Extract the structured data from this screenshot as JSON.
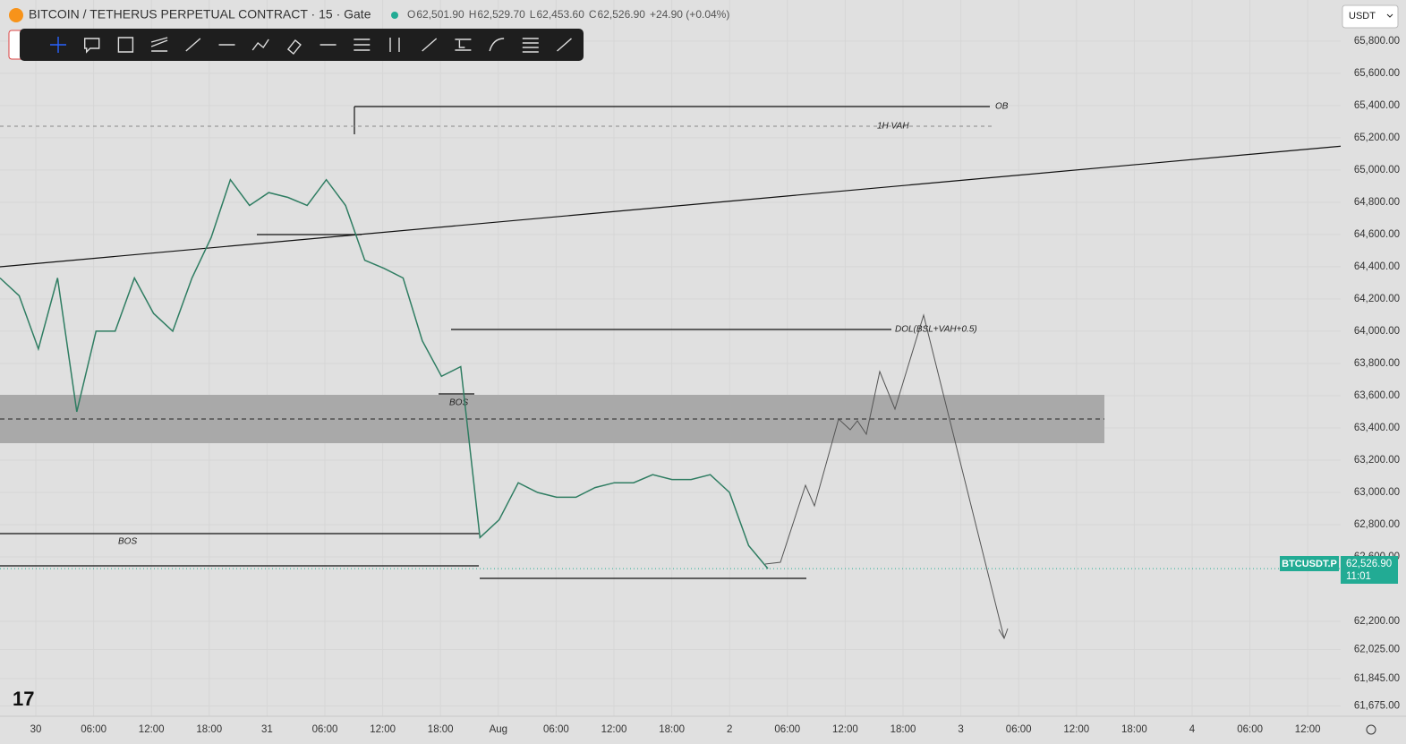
{
  "header": {
    "symbol": "BITCOIN / TETHERUS PERPETUAL CONTRACT · 15 · Gate",
    "ohlc": [
      {
        "key": "O",
        "value": "62,501.90"
      },
      {
        "key": "H",
        "value": "62,529.70"
      },
      {
        "key": "L",
        "value": "62,453.60"
      },
      {
        "key": "C",
        "value": "62,526.90"
      }
    ],
    "change": "+24.90 (+0.04%)",
    "currency": "USDT"
  },
  "price_axis": {
    "ylim": [
      61611,
      66055
    ],
    "ticks": [
      {
        "value": 65800,
        "label": "65,800.00"
      },
      {
        "value": 65600,
        "label": "65,600.00"
      },
      {
        "value": 65400,
        "label": "65,400.00"
      },
      {
        "value": 65200,
        "label": "65,200.00"
      },
      {
        "value": 65000,
        "label": "65,000.00"
      },
      {
        "value": 64800,
        "label": "64,800.00"
      },
      {
        "value": 64600,
        "label": "64,600.00"
      },
      {
        "value": 64400,
        "label": "64,400.00"
      },
      {
        "value": 64200,
        "label": "64,200.00"
      },
      {
        "value": 64000,
        "label": "64,000.00"
      },
      {
        "value": 63800,
        "label": "63,800.00"
      },
      {
        "value": 63600,
        "label": "63,600.00"
      },
      {
        "value": 63400,
        "label": "63,400.00"
      },
      {
        "value": 63200,
        "label": "63,200.00"
      },
      {
        "value": 63000,
        "label": "63,000.00"
      },
      {
        "value": 62800,
        "label": "62,800.00"
      },
      {
        "value": 62600,
        "label": "62,600.00"
      },
      {
        "value": 62200,
        "label": "62,200.00"
      },
      {
        "value": 62025,
        "label": "62,025.00"
      },
      {
        "value": 61845,
        "label": "61,845.00"
      },
      {
        "value": 61675,
        "label": "61,675.00"
      }
    ]
  },
  "time_axis": {
    "labels": [
      "30",
      "06:00",
      "12:00",
      "18:00",
      "31",
      "06:00",
      "12:00",
      "18:00",
      "Aug",
      "06:00",
      "12:00",
      "18:00",
      "2",
      "06:00",
      "12:00",
      "18:00",
      "3",
      "06:00",
      "12:00",
      "18:00",
      "4",
      "06:00",
      "12:00"
    ]
  },
  "price_series": {
    "color": "#2f7d62",
    "values": [
      64330,
      64220,
      63890,
      64330,
      63500,
      64000,
      64000,
      64330,
      64110,
      64000,
      64330,
      64580,
      64940,
      64780,
      64860,
      64830,
      64780,
      64940,
      64780,
      64440,
      64390,
      64330,
      63940,
      63720,
      63780,
      62720,
      62830,
      63060,
      63000,
      62970,
      62970,
      63030,
      63060,
      63060,
      63110,
      63080,
      63080,
      63110,
      63000,
      62670,
      62526.9
    ]
  },
  "annotations": {
    "ob": "OB",
    "vah": "1H VAH",
    "dol": "DOL(BSL+VAH+0.5)",
    "bos1": "BOS",
    "bos2": "BOS"
  },
  "price_tag": {
    "symbol": "BTCUSDT.P",
    "price": "62,526.90",
    "countdown": "11:01"
  }
}
